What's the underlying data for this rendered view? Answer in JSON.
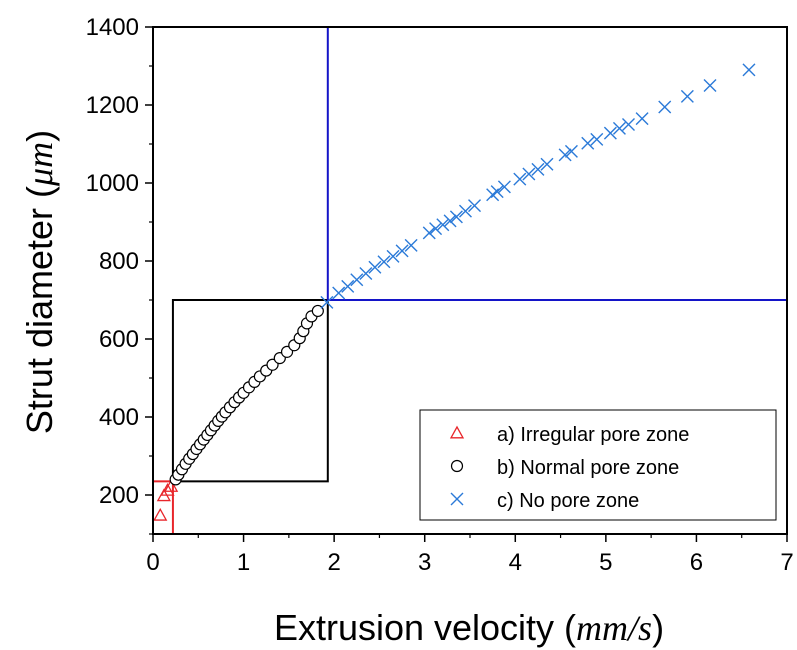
{
  "chart_data": {
    "type": "scatter",
    "xlabel_prefix": "Extrusion velocity (",
    "xlabel_unit": "mm/s",
    "xlabel_suffix": ")",
    "ylabel_prefix": "Strut diameter (",
    "ylabel_unit": "μm",
    "ylabel_suffix": ")",
    "xlim": [
      0,
      7
    ],
    "ylim": [
      100,
      1400
    ],
    "x_ticks": [
      0,
      1,
      2,
      3,
      4,
      5,
      6,
      7
    ],
    "y_ticks": [
      200,
      400,
      600,
      800,
      1000,
      1200,
      1400
    ],
    "legend_position": "bottom-right",
    "series": [
      {
        "name": "a) Irregular pore zone",
        "marker": "triangle",
        "color": "#e8262b",
        "points": [
          [
            0.08,
            148
          ],
          [
            0.12,
            198
          ],
          [
            0.16,
            212
          ],
          [
            0.2,
            222
          ]
        ]
      },
      {
        "name": "b) Normal pore zone",
        "marker": "circle",
        "color": "#000000",
        "points": [
          [
            0.25,
            240
          ],
          [
            0.28,
            252
          ],
          [
            0.32,
            266
          ],
          [
            0.36,
            280
          ],
          [
            0.4,
            293
          ],
          [
            0.44,
            305
          ],
          [
            0.48,
            318
          ],
          [
            0.52,
            330
          ],
          [
            0.56,
            342
          ],
          [
            0.6,
            354
          ],
          [
            0.64,
            366
          ],
          [
            0.68,
            378
          ],
          [
            0.72,
            390
          ],
          [
            0.76,
            401
          ],
          [
            0.8,
            412
          ],
          [
            0.85,
            425
          ],
          [
            0.9,
            438
          ],
          [
            0.95,
            450
          ],
          [
            1.0,
            462
          ],
          [
            1.06,
            476
          ],
          [
            1.12,
            490
          ],
          [
            1.18,
            504
          ],
          [
            1.25,
            519
          ],
          [
            1.32,
            534
          ],
          [
            1.4,
            551
          ],
          [
            1.48,
            567
          ],
          [
            1.56,
            584
          ],
          [
            1.62,
            602
          ],
          [
            1.66,
            620
          ],
          [
            1.7,
            640
          ],
          [
            1.75,
            658
          ],
          [
            1.82,
            672
          ]
        ]
      },
      {
        "name": "c) No pore zone",
        "marker": "cross",
        "color": "#2b7ad8",
        "points": [
          [
            1.92,
            694
          ],
          [
            2.05,
            718
          ],
          [
            2.15,
            735
          ],
          [
            2.25,
            752
          ],
          [
            2.35,
            768
          ],
          [
            2.45,
            784
          ],
          [
            2.55,
            798
          ],
          [
            2.65,
            812
          ],
          [
            2.75,
            826
          ],
          [
            2.85,
            840
          ],
          [
            3.05,
            872
          ],
          [
            3.12,
            883
          ],
          [
            3.2,
            893
          ],
          [
            3.28,
            903
          ],
          [
            3.35,
            913
          ],
          [
            3.45,
            928
          ],
          [
            3.55,
            942
          ],
          [
            3.75,
            970
          ],
          [
            3.8,
            978
          ],
          [
            3.88,
            990
          ],
          [
            4.05,
            1010
          ],
          [
            4.15,
            1023
          ],
          [
            4.25,
            1035
          ],
          [
            4.35,
            1048
          ],
          [
            4.55,
            1072
          ],
          [
            4.62,
            1081
          ],
          [
            4.8,
            1102
          ],
          [
            4.9,
            1112
          ],
          [
            5.05,
            1128
          ],
          [
            5.15,
            1140
          ],
          [
            5.25,
            1150
          ],
          [
            5.4,
            1165
          ],
          [
            5.65,
            1195
          ],
          [
            5.9,
            1222
          ],
          [
            6.15,
            1250
          ],
          [
            6.58,
            1290
          ]
        ]
      }
    ],
    "zones": [
      {
        "name": "irregular-zone-box",
        "color": "#e8262b",
        "x": [
          0.0,
          0.22
        ],
        "y": [
          100,
          235
        ]
      },
      {
        "name": "normal-zone-box",
        "color": "#000000",
        "x": [
          0.22,
          1.93
        ],
        "y": [
          235,
          700
        ]
      },
      {
        "name": "no-pore-zone-box",
        "color": "#1414c8",
        "x": [
          1.93,
          7.0
        ],
        "y": [
          700,
          1400
        ]
      }
    ]
  }
}
